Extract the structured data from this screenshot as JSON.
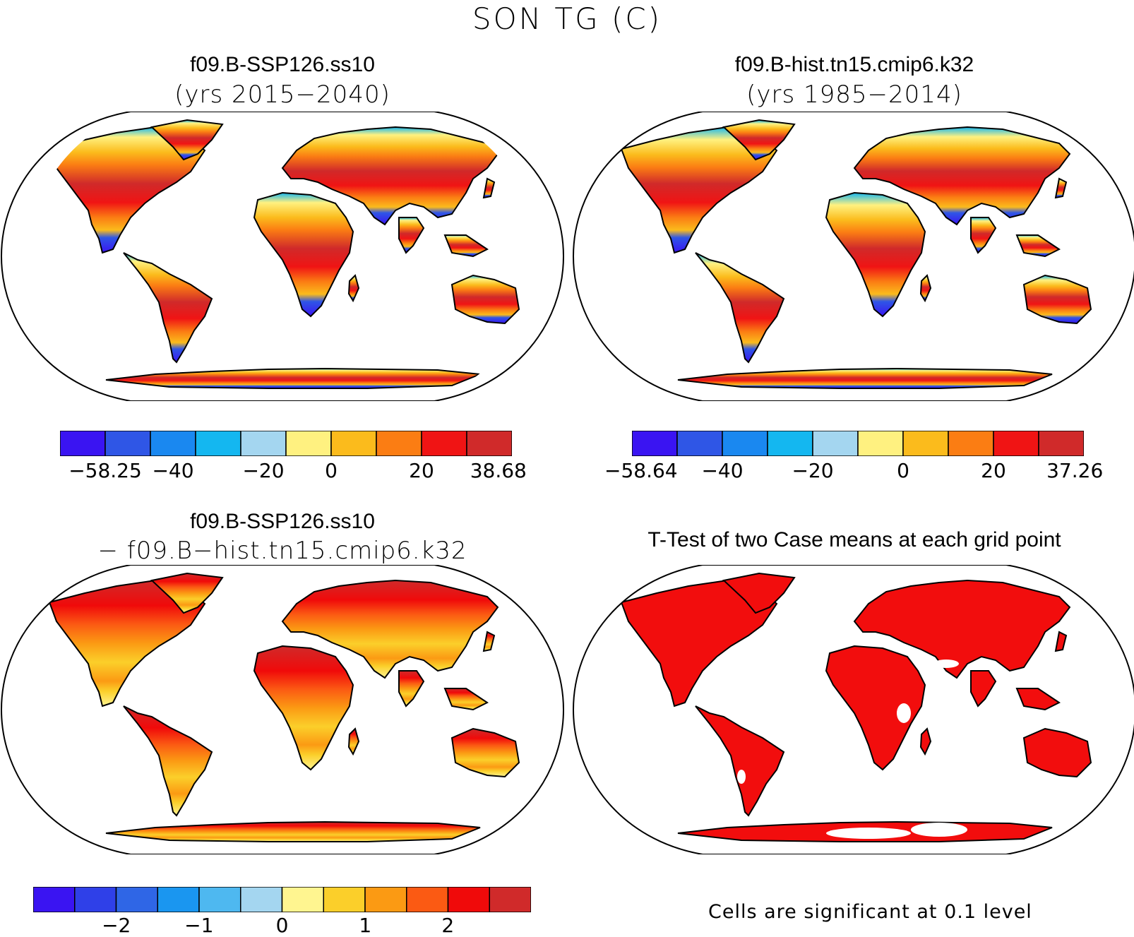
{
  "title": "SON TG (C)",
  "panels": [
    {
      "id": "case",
      "title": "f09.B-SSP126.ss10",
      "subtitle": "(yrs 2015−2040)",
      "colorbar": {
        "colors": [
          "#3a14f2",
          "#2f56e6",
          "#1a88f0",
          "#14b7f0",
          "#a4d6f0",
          "#fff180",
          "#fbbb1c",
          "#fb7d13",
          "#f01414",
          "#d02a2a"
        ],
        "labels": [
          "−58.25",
          "−40",
          "−20",
          "0",
          "20",
          "38.68"
        ]
      }
    },
    {
      "id": "control",
      "title": "f09.B-hist.tn15.cmip6.k32",
      "subtitle": "(yrs 1985−2014)",
      "colorbar": {
        "colors": [
          "#3a14f2",
          "#2f56e6",
          "#1a88f0",
          "#14b7f0",
          "#a4d6f0",
          "#fff180",
          "#fbbb1c",
          "#fb7d13",
          "#f01414",
          "#d02a2a"
        ],
        "labels": [
          "−58.64",
          "−40",
          "−20",
          "0",
          "20",
          "37.26"
        ]
      }
    },
    {
      "id": "difference",
      "title": "f09.B-SSP126.ss10",
      "subtitle": "− f09.B−hist.tn15.cmip6.k32",
      "colorbar": {
        "colors": [
          "#3a14f2",
          "#2f40e8",
          "#2f66e6",
          "#1a96f0",
          "#4eb8f0",
          "#a4d6f0",
          "#fff590",
          "#fbcf2a",
          "#fb9a13",
          "#fb5a13",
          "#f00a0a",
          "#d02a2a"
        ],
        "labels": [
          "−2",
          "−1",
          "0",
          "1",
          "2"
        ]
      }
    },
    {
      "id": "ttest",
      "title": "T-Test of two Case means at each grid point",
      "note": "Cells are significant at 0.1 level",
      "fill_color": "#f20d0d"
    }
  ]
}
